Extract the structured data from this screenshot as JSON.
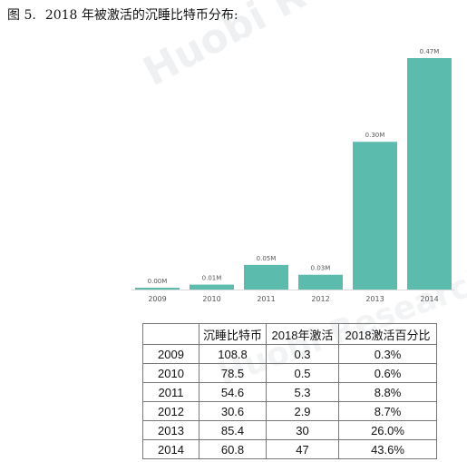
{
  "title": {
    "figure": "图 5.",
    "text": "2018 年被激活的沉睡比特币分布:"
  },
  "watermark": "Huobi Research",
  "chart_data": {
    "type": "bar",
    "categories": [
      "2009",
      "2010",
      "2011",
      "2012",
      "2013",
      "2014"
    ],
    "values": [
      0.0,
      0.01,
      0.05,
      0.03,
      0.3,
      0.47
    ],
    "data_labels": [
      "0.00M",
      "0.01M",
      "0.05M",
      "0.03M",
      "0.30M",
      "0.47M"
    ],
    "unit": "M",
    "ylim": [
      0,
      0.47
    ],
    "grid": false,
    "color": "#5bbcad",
    "axis_color": "#d9d9d9"
  },
  "table": {
    "headers": [
      "",
      "沉睡比特币",
      "2018年激活",
      "2018激活百分比"
    ],
    "rows": [
      [
        "2009",
        "108.8",
        "0.3",
        "0.3%"
      ],
      [
        "2010",
        "78.5",
        "0.5",
        "0.6%"
      ],
      [
        "2011",
        "54.6",
        "5.3",
        "8.8%"
      ],
      [
        "2012",
        "30.6",
        "2.9",
        "8.7%"
      ],
      [
        "2013",
        "85.4",
        "30",
        "26.0%"
      ],
      [
        "2014",
        "60.8",
        "47",
        "43.6%"
      ]
    ]
  }
}
